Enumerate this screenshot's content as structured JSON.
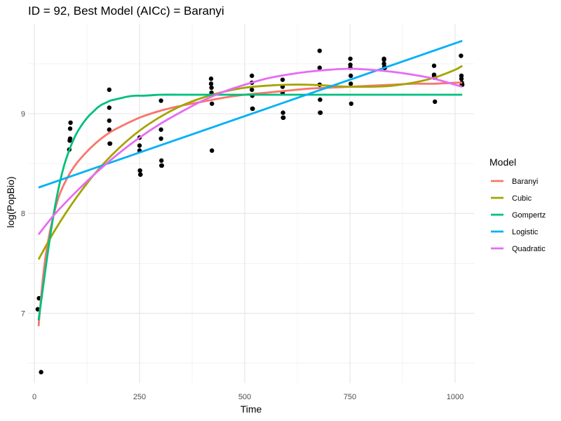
{
  "chart_data": {
    "type": "scatter",
    "title": "ID = 92, Best Model (AICc) = Baranyi",
    "xlabel": "Time",
    "ylabel": "log(PopBio)",
    "xlim": [
      -15,
      1045
    ],
    "ylim": [
      6.3,
      9.9
    ],
    "xticks": [
      0,
      250,
      500,
      750,
      1000
    ],
    "xtick_labels": [
      "0",
      "250",
      "500",
      "750",
      "1000"
    ],
    "yticks": [
      7,
      8,
      9
    ],
    "ytick_labels": [
      "7",
      "8",
      "9"
    ],
    "grid": true,
    "legend": {
      "title": "Model",
      "placement": "right",
      "entries": [
        "Baranyi",
        "Cubic",
        "Gompertz",
        "Logistic",
        "Quadratic"
      ]
    },
    "points": {
      "x": [
        8,
        11,
        14,
        16,
        83,
        84,
        85,
        85,
        86,
        178,
        178,
        178,
        178,
        179,
        180,
        250,
        250,
        250,
        251,
        252,
        252,
        301,
        301,
        301,
        302,
        302,
        303,
        420,
        420,
        421,
        421,
        422,
        422,
        517,
        517,
        517,
        518,
        518,
        519,
        590,
        590,
        590,
        591,
        591,
        592,
        678,
        678,
        678,
        679,
        679,
        680,
        751,
        751,
        751,
        752,
        752,
        753,
        831,
        831,
        831,
        832,
        832,
        833,
        950,
        950,
        950,
        951,
        952,
        952,
        1014,
        1015,
        1015,
        1016,
        1016,
        1017
      ],
      "y": [
        7.04,
        7.15,
        7.15,
        6.41,
        8.64,
        8.73,
        8.75,
        8.85,
        8.91,
        9.24,
        9.06,
        8.93,
        8.84,
        8.7,
        8.7,
        8.76,
        8.68,
        8.63,
        8.43,
        8.39,
        8.39,
        9.13,
        8.84,
        8.75,
        8.53,
        8.48,
        8.48,
        9.35,
        9.3,
        9.26,
        9.21,
        9.1,
        8.63,
        9.38,
        9.31,
        9.24,
        9.18,
        9.05,
        9.05,
        9.34,
        9.27,
        9.21,
        9.01,
        8.96,
        8.96,
        9.63,
        9.46,
        9.29,
        9.14,
        9.01,
        9.01,
        9.55,
        9.49,
        9.46,
        9.38,
        9.3,
        9.1,
        9.55,
        9.54,
        9.5,
        9.47,
        9.46,
        9.46,
        9.48,
        9.39,
        9.38,
        9.36,
        9.36,
        9.12,
        9.58,
        9.38,
        9.35,
        9.31,
        9.29,
        9.29
      ]
    },
    "series": [
      {
        "name": "Baranyi",
        "color": "#F8766D",
        "x": [
          10,
          20,
          30,
          45,
          60,
          80,
          100,
          125,
          150,
          175,
          200,
          250,
          300,
          350,
          400,
          450,
          500,
          550,
          600,
          650,
          700,
          750,
          800,
          850,
          900,
          950,
          1000,
          1017
        ],
        "y": [
          6.87,
          7.34,
          7.66,
          7.97,
          8.19,
          8.37,
          8.5,
          8.62,
          8.72,
          8.8,
          8.86,
          8.96,
          9.03,
          9.08,
          9.12,
          9.16,
          9.19,
          9.21,
          9.23,
          9.25,
          9.26,
          9.27,
          9.28,
          9.29,
          9.3,
          9.3,
          9.31,
          9.31
        ]
      },
      {
        "name": "Cubic",
        "color": "#A3A500",
        "x": [
          10,
          50,
          100,
          150,
          200,
          250,
          300,
          350,
          400,
          450,
          500,
          550,
          600,
          650,
          700,
          750,
          800,
          850,
          900,
          950,
          1000,
          1017
        ],
        "y": [
          7.54,
          7.84,
          8.16,
          8.43,
          8.65,
          8.83,
          8.97,
          9.08,
          9.16,
          9.22,
          9.26,
          9.28,
          9.29,
          9.29,
          9.28,
          9.27,
          9.27,
          9.28,
          9.31,
          9.36,
          9.44,
          9.48
        ]
      },
      {
        "name": "Gompertz",
        "color": "#00BF7D",
        "x": [
          10,
          20,
          30,
          40,
          50,
          60,
          70,
          80,
          90,
          100,
          110,
          120,
          130,
          140,
          150,
          160,
          170,
          180,
          190,
          200,
          220,
          240,
          260,
          280,
          300,
          350,
          400,
          450,
          500,
          600,
          700,
          800,
          900,
          1017
        ],
        "y": [
          6.93,
          7.24,
          7.55,
          7.84,
          8.09,
          8.3,
          8.47,
          8.6,
          8.71,
          8.8,
          8.87,
          8.93,
          8.98,
          9.02,
          9.06,
          9.09,
          9.11,
          9.13,
          9.14,
          9.15,
          9.17,
          9.18,
          9.18,
          9.185,
          9.19,
          9.19,
          9.19,
          9.19,
          9.19,
          9.19,
          9.19,
          9.19,
          9.19,
          9.19
        ]
      },
      {
        "name": "Logistic",
        "color": "#00B0F6",
        "x": [
          10,
          1017
        ],
        "y": [
          8.26,
          9.73
        ]
      },
      {
        "name": "Quadratic",
        "color": "#E76BF3",
        "x": [
          10,
          50,
          100,
          150,
          200,
          250,
          300,
          350,
          400,
          450,
          500,
          550,
          600,
          650,
          700,
          750,
          800,
          850,
          900,
          950,
          1000,
          1017
        ],
        "y": [
          7.79,
          8.0,
          8.22,
          8.42,
          8.6,
          8.76,
          8.9,
          9.02,
          9.13,
          9.22,
          9.29,
          9.35,
          9.39,
          9.42,
          9.44,
          9.45,
          9.44,
          9.42,
          9.39,
          9.35,
          9.29,
          9.27
        ]
      }
    ]
  }
}
